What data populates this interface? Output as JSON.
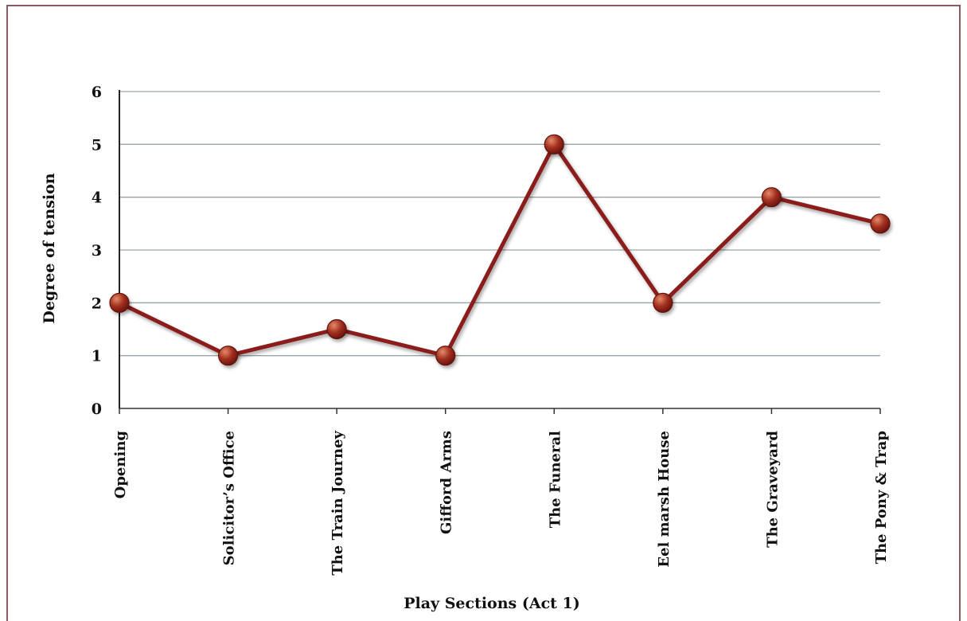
{
  "chart_data": {
    "type": "line",
    "xlabel": "Play Sections (Act 1)",
    "ylabel": "Degree of tension",
    "ylim": [
      0,
      6
    ],
    "yticks": [
      "0",
      "1",
      "2",
      "3",
      "4",
      "5",
      "6"
    ],
    "categories": [
      "Opening",
      "Solicitor’s Office",
      "The Train Journey",
      "Gifford Arms",
      "The Funeral",
      "Eel marsh House",
      "The Graveyard",
      "The Pony & Trap"
    ],
    "series": [
      {
        "values": [
          2,
          1,
          1.5,
          1,
          5,
          2,
          4,
          3.5
        ]
      }
    ],
    "grid": true,
    "legend": "none",
    "colors": {
      "line": "#8b1e1a",
      "marker": "#9a2a1e",
      "marker_highlight": "#e07a5a",
      "grid": "#9aa3a6",
      "frame": "#8a5a5e"
    }
  }
}
